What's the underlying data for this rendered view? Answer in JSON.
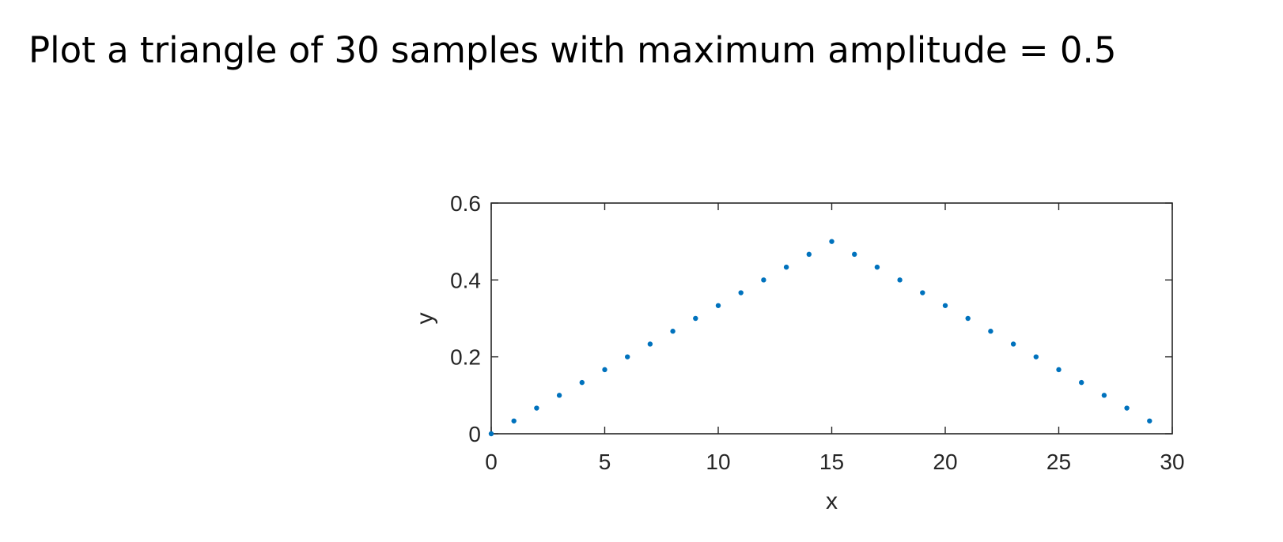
{
  "slide": {
    "title": "Plot a triangle of 30 samples with maximum amplitude = 0.5"
  },
  "colors": {
    "marker": "#0072BD",
    "axis": "#262626",
    "background": "#ffffff"
  },
  "chart_data": {
    "type": "scatter",
    "title": "",
    "xlabel": "x",
    "ylabel": "y",
    "xlim": [
      0,
      30
    ],
    "ylim": [
      0,
      0.6
    ],
    "xticks": [
      0,
      5,
      10,
      15,
      20,
      25,
      30
    ],
    "yticks": [
      0,
      0.2,
      0.4,
      0.6
    ],
    "xtick_labels": [
      "0",
      "5",
      "10",
      "15",
      "20",
      "25",
      "30"
    ],
    "ytick_labels": [
      "0",
      "0.2",
      "0.4",
      "0.6"
    ],
    "grid": false,
    "box": true,
    "marker": "point",
    "x": [
      0,
      1,
      2,
      3,
      4,
      5,
      6,
      7,
      8,
      9,
      10,
      11,
      12,
      13,
      14,
      15,
      16,
      17,
      18,
      19,
      20,
      21,
      22,
      23,
      24,
      25,
      26,
      27,
      28,
      29
    ],
    "y": [
      0,
      0.0333,
      0.0667,
      0.1,
      0.1333,
      0.1667,
      0.2,
      0.2333,
      0.2667,
      0.3,
      0.3333,
      0.3667,
      0.4,
      0.4333,
      0.4667,
      0.5,
      0.4667,
      0.4333,
      0.4,
      0.3667,
      0.3333,
      0.3,
      0.2667,
      0.2333,
      0.2,
      0.1667,
      0.1333,
      0.1,
      0.0667,
      0.0333
    ]
  }
}
